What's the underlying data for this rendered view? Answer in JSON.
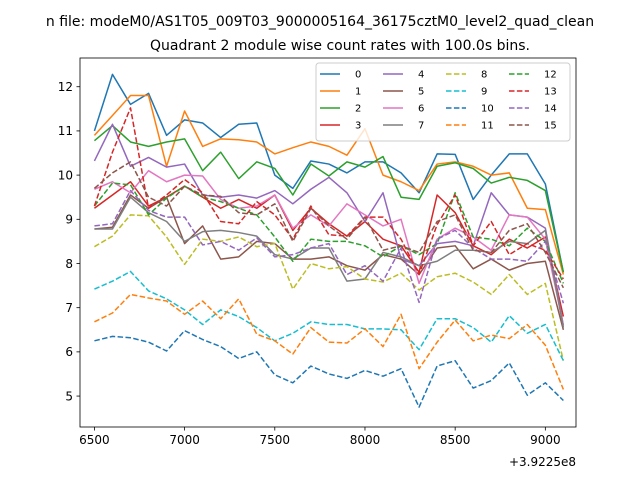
{
  "chart_data": {
    "type": "line",
    "suptitle": "n file: modeM0/AS1T05_009T03_9000005164_36175cztM0_level2_quad_clean",
    "title": "Quadrant 2 module wise count rates with 100.0s bins.",
    "xlabel": "",
    "ylabel": "",
    "x_offset_label": "+3.9225e8",
    "x_offset": 392250000,
    "xlim": [
      6420,
      9170
    ],
    "ylim": [
      4.3,
      12.65
    ],
    "xticks": [
      6500,
      7000,
      7500,
      8000,
      8500,
      9000
    ],
    "yticks": [
      5,
      6,
      7,
      8,
      9,
      10,
      11,
      12
    ],
    "grid": false,
    "legend_position": "top-right",
    "legend_columns": 4,
    "x": [
      6500,
      6600,
      6700,
      6800,
      6900,
      7000,
      7100,
      7200,
      7300,
      7400,
      7500,
      7600,
      7700,
      7800,
      7900,
      8000,
      8100,
      8200,
      8300,
      8400,
      8500,
      8600,
      8700,
      8800,
      8900,
      9000,
      9100
    ],
    "series": [
      {
        "name": "0",
        "color": "#1f77b4",
        "dash": "solid",
        "values": [
          11.0,
          12.28,
          11.6,
          11.85,
          10.9,
          11.25,
          11.18,
          10.85,
          11.15,
          11.18,
          10.0,
          9.7,
          10.32,
          10.25,
          10.05,
          10.3,
          10.3,
          10.05,
          9.6,
          10.48,
          10.47,
          9.45,
          10.0,
          10.48,
          10.48,
          9.8,
          7.8
        ]
      },
      {
        "name": "1",
        "color": "#ff7f0e",
        "dash": "solid",
        "values": [
          10.9,
          11.35,
          11.8,
          11.8,
          10.2,
          11.45,
          10.65,
          10.82,
          10.8,
          10.75,
          10.48,
          10.62,
          10.75,
          10.65,
          10.45,
          11.05,
          10.0,
          9.85,
          9.65,
          10.25,
          10.3,
          10.2,
          10.0,
          10.05,
          9.25,
          9.22,
          7.75
        ]
      },
      {
        "name": "2",
        "color": "#2ca02c",
        "dash": "solid",
        "values": [
          10.78,
          11.12,
          10.75,
          10.65,
          10.75,
          10.82,
          10.1,
          10.52,
          9.92,
          10.3,
          10.15,
          9.55,
          10.25,
          9.98,
          10.3,
          10.18,
          10.42,
          9.5,
          9.45,
          10.2,
          10.28,
          10.15,
          9.82,
          9.95,
          9.88,
          9.65,
          7.8
        ]
      },
      {
        "name": "3",
        "color": "#d62728",
        "dash": "solid",
        "values": [
          9.25,
          9.55,
          9.85,
          9.3,
          9.5,
          9.75,
          9.5,
          9.25,
          9.45,
          9.25,
          9.55,
          8.75,
          9.25,
          8.9,
          8.62,
          8.95,
          8.55,
          8.4,
          7.8,
          9.55,
          9.15,
          8.4,
          8.2,
          8.55,
          8.35,
          8.6,
          6.8
        ]
      },
      {
        "name": "4",
        "color": "#9467bd",
        "dash": "solid",
        "values": [
          10.32,
          11.15,
          10.2,
          10.4,
          10.18,
          10.25,
          9.55,
          9.5,
          9.55,
          9.48,
          9.65,
          9.35,
          9.68,
          9.95,
          9.6,
          8.95,
          9.6,
          8.1,
          7.95,
          8.45,
          8.5,
          8.4,
          9.6,
          9.1,
          9.05,
          8.8,
          6.6
        ]
      },
      {
        "name": "5",
        "color": "#8c564b",
        "dash": "solid",
        "values": [
          8.78,
          8.82,
          9.55,
          9.25,
          9.5,
          8.45,
          8.85,
          8.1,
          8.15,
          8.5,
          8.45,
          8.1,
          8.1,
          8.15,
          7.95,
          7.85,
          8.2,
          8.1,
          7.75,
          8.35,
          8.4,
          7.88,
          8.1,
          7.85,
          8.0,
          8.05,
          6.5
        ]
      },
      {
        "name": "6",
        "color": "#e377c2",
        "dash": "solid",
        "values": [
          9.68,
          9.85,
          9.6,
          10.1,
          9.85,
          10.0,
          9.98,
          9.45,
          9.25,
          9.3,
          9.55,
          8.8,
          9.1,
          8.85,
          9.35,
          9.1,
          8.85,
          9.0,
          7.55,
          8.55,
          8.8,
          8.6,
          8.3,
          9.1,
          9.05,
          8.55,
          6.6
        ]
      },
      {
        "name": "7",
        "color": "#7f7f7f",
        "dash": "solid",
        "values": [
          8.78,
          8.78,
          9.5,
          9.15,
          8.95,
          8.5,
          8.72,
          8.75,
          8.7,
          8.62,
          8.2,
          8.1,
          8.35,
          8.35,
          7.6,
          7.65,
          8.25,
          8.15,
          7.95,
          8.05,
          8.3,
          8.3,
          8.25,
          8.5,
          8.45,
          8.75,
          6.55
        ]
      },
      {
        "name": "8",
        "color": "#bcbd22",
        "dash": "dashed",
        "values": [
          8.38,
          8.62,
          9.1,
          9.08,
          8.6,
          7.98,
          8.55,
          8.5,
          8.6,
          8.38,
          8.45,
          7.42,
          8.0,
          7.88,
          7.93,
          7.65,
          7.58,
          7.78,
          7.4,
          7.7,
          7.78,
          7.58,
          7.3,
          7.75,
          7.3,
          7.55,
          5.8
        ]
      },
      {
        "name": "9",
        "color": "#17becf",
        "dash": "dashed",
        "values": [
          7.42,
          7.6,
          7.82,
          7.38,
          7.2,
          6.95,
          6.62,
          6.95,
          6.8,
          6.55,
          6.25,
          6.42,
          6.68,
          6.62,
          6.62,
          6.52,
          6.52,
          6.5,
          6.05,
          6.75,
          6.75,
          6.55,
          6.22,
          6.82,
          6.42,
          6.62,
          5.8
        ]
      },
      {
        "name": "10",
        "color": "#1f77b4",
        "dash": "dashed",
        "values": [
          6.25,
          6.35,
          6.32,
          6.22,
          6.02,
          6.48,
          6.28,
          6.12,
          5.85,
          6.0,
          5.48,
          5.3,
          5.68,
          5.5,
          5.4,
          5.58,
          5.45,
          5.62,
          4.75,
          5.68,
          5.8,
          5.18,
          5.35,
          5.75,
          5.02,
          5.3,
          4.9
        ]
      },
      {
        "name": "11",
        "color": "#ff7f0e",
        "dash": "dashed",
        "values": [
          6.68,
          6.88,
          7.3,
          7.22,
          7.15,
          6.85,
          7.15,
          6.75,
          7.2,
          6.4,
          6.25,
          5.95,
          6.55,
          6.22,
          6.2,
          6.52,
          6.12,
          6.85,
          5.62,
          6.22,
          6.72,
          6.25,
          6.38,
          6.3,
          6.62,
          6.15,
          5.15
        ]
      },
      {
        "name": "12",
        "color": "#2ca02c",
        "dash": "dashed",
        "values": [
          9.3,
          9.82,
          9.78,
          9.1,
          9.48,
          9.75,
          9.5,
          9.4,
          9.25,
          9.1,
          8.6,
          8.05,
          8.55,
          8.5,
          8.5,
          8.4,
          8.15,
          8.4,
          8.2,
          8.45,
          9.6,
          8.6,
          8.55,
          8.4,
          8.8,
          8.5,
          7.55
        ]
      },
      {
        "name": "13",
        "color": "#d62728",
        "dash": "dashed",
        "values": [
          9.3,
          10.52,
          11.52,
          9.25,
          9.55,
          9.9,
          9.6,
          8.95,
          8.9,
          9.4,
          9.1,
          8.55,
          9.3,
          8.65,
          8.62,
          9.05,
          9.05,
          8.55,
          7.75,
          8.88,
          9.55,
          8.4,
          8.95,
          8.2,
          8.45,
          8.3,
          7.65
        ]
      },
      {
        "name": "14",
        "color": "#9467bd",
        "dash": "dashed",
        "values": [
          8.85,
          8.9,
          9.65,
          9.2,
          9.05,
          9.05,
          8.42,
          8.5,
          8.3,
          8.58,
          8.15,
          8.2,
          8.35,
          8.45,
          7.75,
          7.95,
          7.6,
          8.35,
          7.12,
          8.55,
          8.75,
          8.35,
          8.1,
          8.1,
          8.05,
          8.5,
          7.1
        ]
      },
      {
        "name": "15",
        "color": "#8c564b",
        "dash": "dashed",
        "values": [
          9.7,
          10.05,
          10.3,
          9.5,
          9.3,
          9.75,
          9.55,
          9.52,
          9.15,
          9.1,
          9.35,
          8.5,
          9.25,
          8.85,
          8.55,
          9.05,
          8.3,
          8.4,
          8.25,
          8.95,
          9.1,
          8.3,
          8.25,
          8.75,
          8.9,
          8.25,
          7.45
        ]
      }
    ]
  }
}
